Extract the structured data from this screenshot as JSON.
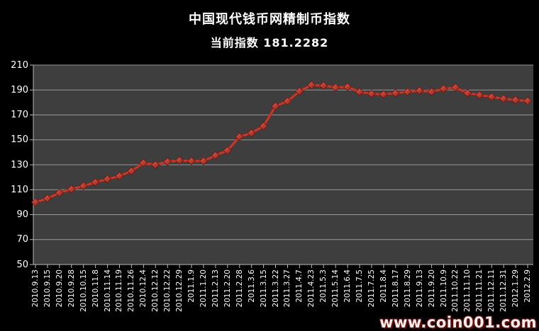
{
  "header": {
    "title": "中国现代钱币网精制币指数",
    "subtitle": "当前指数 181.2282"
  },
  "watermark": "www.coin001.com",
  "chart_data": {
    "type": "line",
    "title": "中国现代钱币网精制币指数",
    "subtitle": "当前指数 181.2282",
    "current_index": 181.2282,
    "legend_position": "none",
    "grid": true,
    "marker": "diamond",
    "ylim": [
      50,
      210
    ],
    "ytick_step": 20,
    "ytick_labels": [
      "50",
      "70",
      "90",
      "110",
      "130",
      "150",
      "170",
      "190",
      "210"
    ],
    "categories": [
      "2010.9.13",
      "2010.9.15",
      "2010.9.20",
      "2010.9.28",
      "2010.10.15",
      "2010.11.8",
      "2010.11.14",
      "2010.11.19",
      "2010.11.26",
      "2010.12.4",
      "2010.12.12",
      "2010.12.22",
      "2010.12.29",
      "2011.1.9",
      "2011.1.20",
      "2011.2.13",
      "2011.2.20",
      "2011.2.28",
      "2011.3.6",
      "2011.3.15",
      "2011.3.22",
      "2011.3.27",
      "2011.4.7",
      "2011.4.23",
      "2011.5.3",
      "2011.5.14",
      "2011.6.4",
      "2011.7.5",
      "2011.7.25",
      "2011.8.4",
      "2011.8.17",
      "2011.8.29",
      "2011.9.13",
      "2011.9.20",
      "2011.10.9",
      "2011.10.22",
      "2011.11.10",
      "2011.11.21",
      "2011.12.11",
      "2011.12.31",
      "2012.1.29",
      "2012.2.9"
    ],
    "values": [
      100,
      103,
      107.5,
      110.5,
      113,
      116,
      118.5,
      121,
      125,
      131.5,
      130,
      132.5,
      133.5,
      133,
      133,
      137.5,
      141.5,
      152.5,
      155.5,
      161,
      177,
      181,
      189,
      194,
      193.5,
      192,
      192.5,
      188.5,
      187,
      186.5,
      187.5,
      188.5,
      189.5,
      188.5,
      191,
      192,
      187.5,
      186,
      184.5,
      183,
      182,
      181.2282
    ],
    "colors": {
      "background": "#000000",
      "plot_bg": "#3e3e3e",
      "gridline": "#989898",
      "axis": "#b8b8b8",
      "series_line": "#bf3b2c",
      "marker_light": "#e06050",
      "marker_dark": "#8c1d15",
      "marker_edge": "#6e130e",
      "text": "#ffffff",
      "watermark_fill": "#f7eded",
      "watermark_outline": "#6b1410"
    }
  }
}
